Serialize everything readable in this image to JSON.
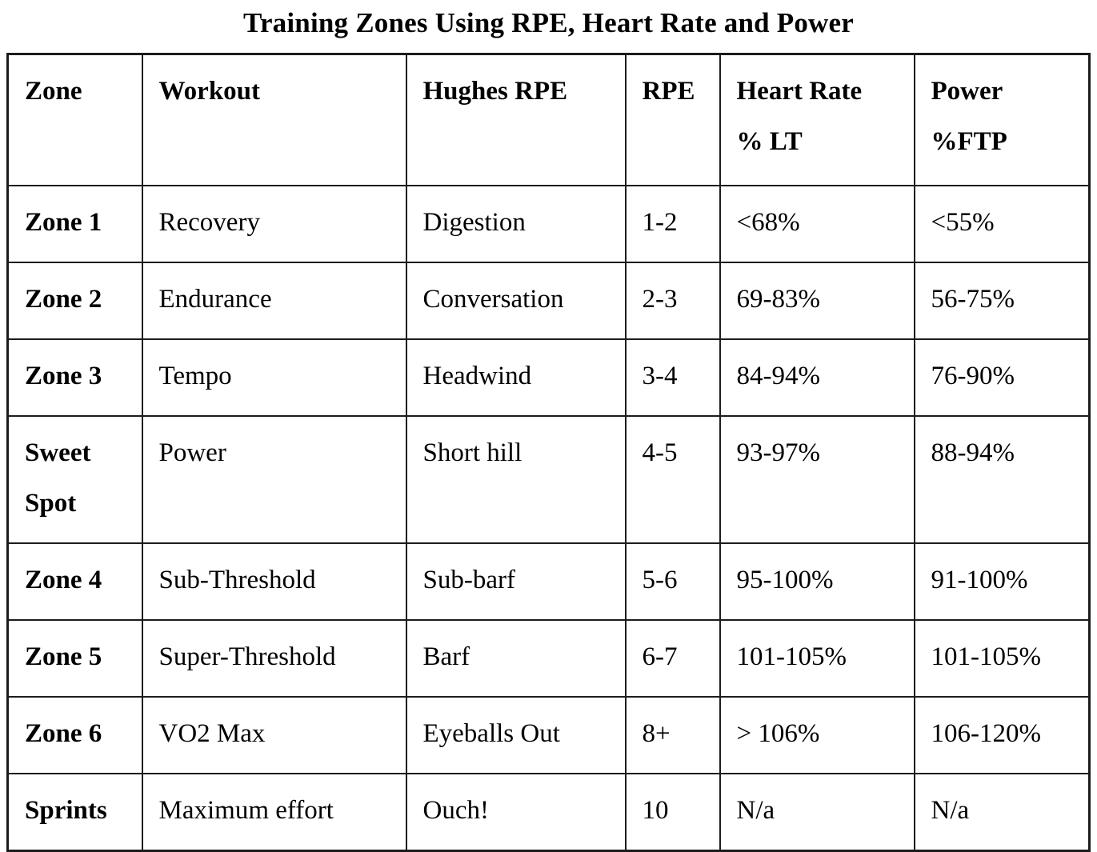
{
  "page": {
    "title": "Training Zones Using RPE, Heart Rate and Power"
  },
  "colors": {
    "text": "#000000",
    "border": "#1c1c1c",
    "background": "#ffffff"
  },
  "chart_data": {
    "type": "table",
    "title": "Training Zones Using RPE, Heart Rate and Power",
    "columns": [
      "Zone",
      "Workout",
      "Hughes RPE",
      "RPE",
      "Heart Rate % LT",
      "Power %FTP"
    ],
    "rows": [
      {
        "zone": "Zone 1",
        "workout": "Recovery",
        "hughes_rpe": "Digestion",
        "rpe": "1-2",
        "heart_rate_pct_lt": "<68%",
        "power_pct_ftp": "<55%"
      },
      {
        "zone": "Zone 2",
        "workout": "Endurance",
        "hughes_rpe": "Conversation",
        "rpe": "2-3",
        "heart_rate_pct_lt": "69-83%",
        "power_pct_ftp": "56-75%"
      },
      {
        "zone": "Zone 3",
        "workout": "Tempo",
        "hughes_rpe": "Headwind",
        "rpe": "3-4",
        "heart_rate_pct_lt": "84-94%",
        "power_pct_ftp": "76-90%"
      },
      {
        "zone": "Sweet Spot",
        "workout": "Power",
        "hughes_rpe": "Short hill",
        "rpe": "4-5",
        "heart_rate_pct_lt": "93-97%",
        "power_pct_ftp": "88-94%"
      },
      {
        "zone": "Zone 4",
        "workout": "Sub-Threshold",
        "hughes_rpe": "Sub-barf",
        "rpe": "5-6",
        "heart_rate_pct_lt": "95-100%",
        "power_pct_ftp": "91-100%"
      },
      {
        "zone": "Zone 5",
        "workout": "Super-Threshold",
        "hughes_rpe": "Barf",
        "rpe": "6-7",
        "heart_rate_pct_lt": "101-105%",
        "power_pct_ftp": "101-105%"
      },
      {
        "zone": "Zone 6",
        "workout": "VO2 Max",
        "hughes_rpe": "Eyeballs Out",
        "rpe": "8+",
        "heart_rate_pct_lt": "> 106%",
        "power_pct_ftp": "106-120%"
      },
      {
        "zone": "Sprints",
        "workout": "Maximum effort",
        "hughes_rpe": "Ouch!",
        "rpe": "10",
        "heart_rate_pct_lt": "N/a",
        "power_pct_ftp": "N/a"
      }
    ]
  },
  "table": {
    "header_labels": [
      "Zone",
      "Workout",
      "Hughes RPE",
      "RPE",
      "Heart Rate\n% LT",
      "Power\n%FTP"
    ],
    "column_keys": [
      "zone",
      "workout",
      "hughes_rpe",
      "rpe",
      "heart_rate_pct_lt",
      "power_pct_ftp"
    ]
  }
}
